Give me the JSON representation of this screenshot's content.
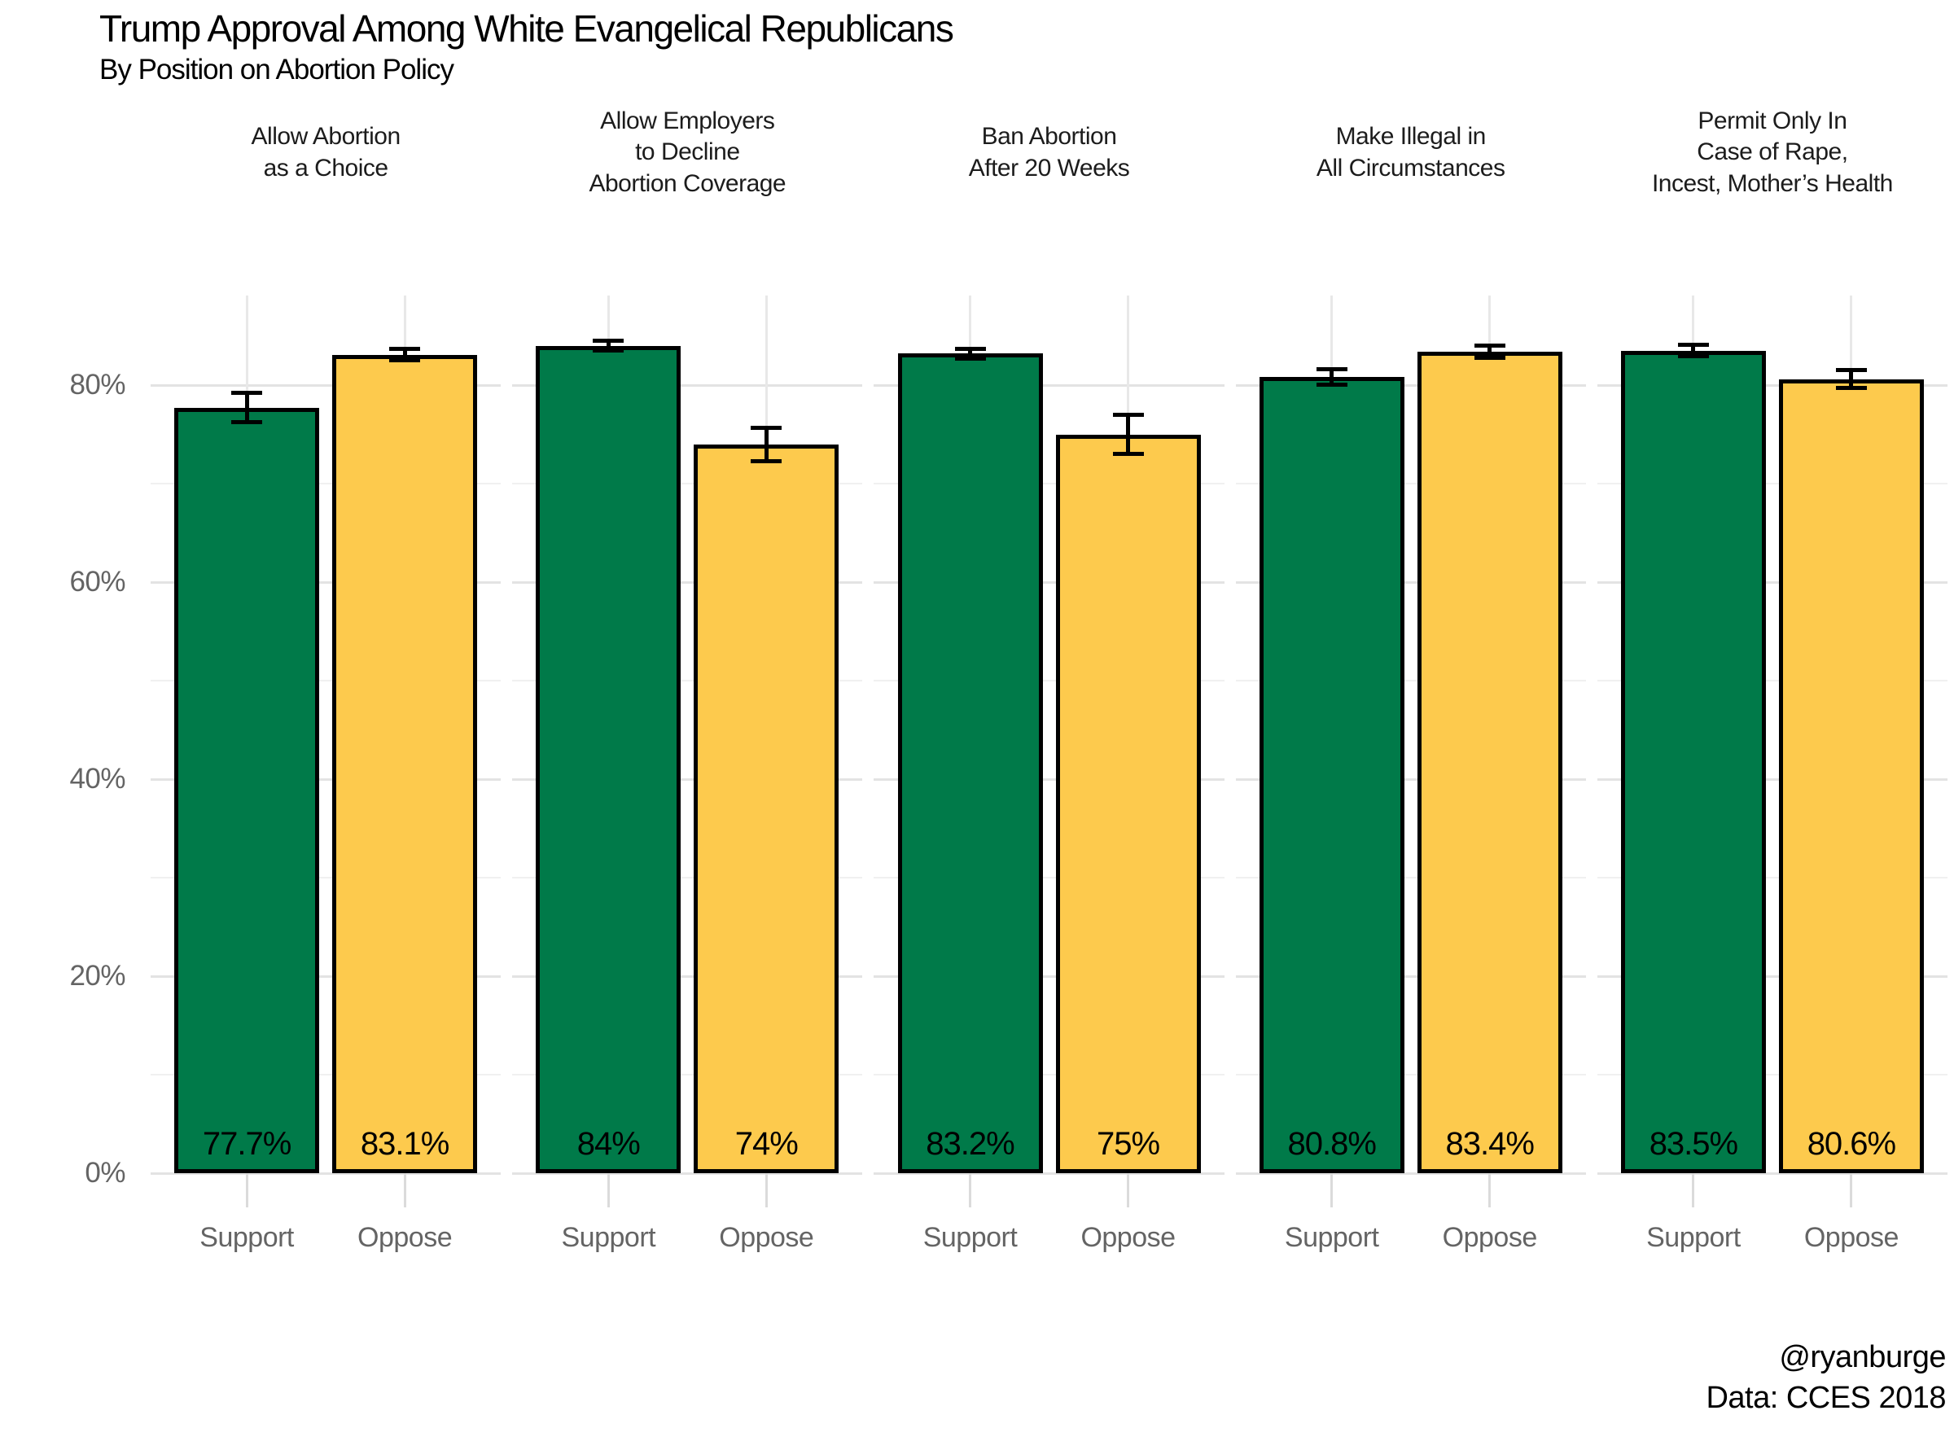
{
  "header": {
    "title": "Trump Approval Among White Evangelical Republicans",
    "subtitle": "By Position on Abortion Policy"
  },
  "caption": {
    "handle": "@ryanburge",
    "source": "Data: CCES 2018"
  },
  "colors": {
    "support_green": "#007A49",
    "oppose_gold": "#FDCA4D",
    "bar_border": "#000000",
    "error_bar": "#000000",
    "grid_major": "#e3e3e3",
    "grid_minor": "#f0f0f0",
    "axis_text": "#646464",
    "background": "#ffffff"
  },
  "chart_data": {
    "type": "bar",
    "title": "Trump Approval Among White Evangelical Republicans",
    "subtitle": "By Position on Abortion Policy",
    "caption_lines": [
      "@ryanburge",
      "Data: CCES 2018"
    ],
    "legend": "none",
    "grid": "major and minor horizontal gridlines, light gray on white; vertical gridline at each bar center",
    "ylim": [
      0,
      89
    ],
    "y_major_ticks": [
      0,
      20,
      40,
      60,
      80
    ],
    "y_tick_labels": [
      "0%",
      "20%",
      "40%",
      "60%",
      "80%"
    ],
    "y_minor_gridlines": [
      10,
      30,
      50,
      70
    ],
    "categories": [
      "Support",
      "Oppose"
    ],
    "facets": [
      {
        "title_lines": [
          "Allow Abortion",
          "as a Choice"
        ],
        "bars": [
          {
            "category": "Support",
            "value": 77.7,
            "label": "77.7%",
            "error_margin": 1.7,
            "color": "#007A49"
          },
          {
            "category": "Oppose",
            "value": 83.1,
            "label": "83.1%",
            "error_margin": 0.8,
            "color": "#FDCA4D"
          }
        ]
      },
      {
        "title_lines": [
          "Allow Employers",
          "to Decline",
          "Abortion Coverage"
        ],
        "bars": [
          {
            "category": "Support",
            "value": 84,
            "label": "84%",
            "error_margin": 0.7,
            "color": "#007A49"
          },
          {
            "category": "Oppose",
            "value": 74,
            "label": "74%",
            "error_margin": 1.9,
            "color": "#FDCA4D"
          }
        ]
      },
      {
        "title_lines": [
          "Ban Abortion",
          "After 20 Weeks"
        ],
        "bars": [
          {
            "category": "Support",
            "value": 83.2,
            "label": "83.2%",
            "error_margin": 0.7,
            "color": "#007A49"
          },
          {
            "category": "Oppose",
            "value": 75,
            "label": "75%",
            "error_margin": 2.2,
            "color": "#FDCA4D"
          }
        ]
      },
      {
        "title_lines": [
          "Make Illegal in",
          "All Circumstances"
        ],
        "bars": [
          {
            "category": "Support",
            "value": 80.8,
            "label": "80.8%",
            "error_margin": 1.0,
            "color": "#007A49"
          },
          {
            "category": "Oppose",
            "value": 83.4,
            "label": "83.4%",
            "error_margin": 0.8,
            "color": "#FDCA4D"
          }
        ]
      },
      {
        "title_lines": [
          "Permit Only In",
          "Case of Rape,",
          "Incest, Mother’s Health"
        ],
        "bars": [
          {
            "category": "Support",
            "value": 83.5,
            "label": "83.5%",
            "error_margin": 0.8,
            "color": "#007A49"
          },
          {
            "category": "Oppose",
            "value": 80.6,
            "label": "80.6%",
            "error_margin": 1.1,
            "color": "#FDCA4D"
          }
        ]
      }
    ]
  }
}
